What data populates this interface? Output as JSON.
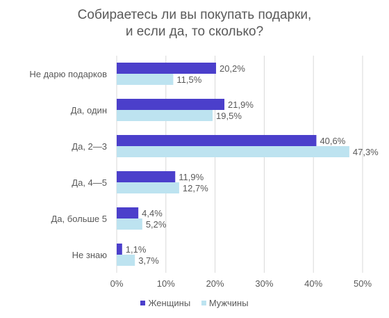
{
  "chart_data": {
    "type": "bar",
    "orientation": "horizontal",
    "title_lines": [
      "Собираетесь ли вы покупать подарки,",
      "и если да, то сколько?"
    ],
    "categories": [
      "Не дарю подарков",
      "Да, один",
      "Да, 2—3",
      "Да, 4—5",
      "Да, больше 5",
      "Не знаю"
    ],
    "series": [
      {
        "name": "Женщины",
        "color": "#4B3FCB",
        "values": [
          20.2,
          21.9,
          40.6,
          11.9,
          4.4,
          1.1
        ],
        "labels": [
          "20,2%",
          "21,9%",
          "40,6%",
          "11,9%",
          "4,4%",
          "1,1%"
        ]
      },
      {
        "name": "Мужчины",
        "color": "#BDE3F0",
        "values": [
          11.5,
          19.5,
          47.3,
          12.7,
          5.2,
          3.7
        ],
        "labels": [
          "11,5%",
          "19,5%",
          "47,3%",
          "12,7%",
          "5,2%",
          "3,7%"
        ]
      }
    ],
    "xlim": [
      0,
      50
    ],
    "x_ticks": [
      0,
      10,
      20,
      30,
      40,
      50
    ],
    "x_tick_labels": [
      "0%",
      "10%",
      "20%",
      "30%",
      "40%",
      "50%"
    ],
    "grid": "vertical",
    "legend_position": "bottom"
  }
}
